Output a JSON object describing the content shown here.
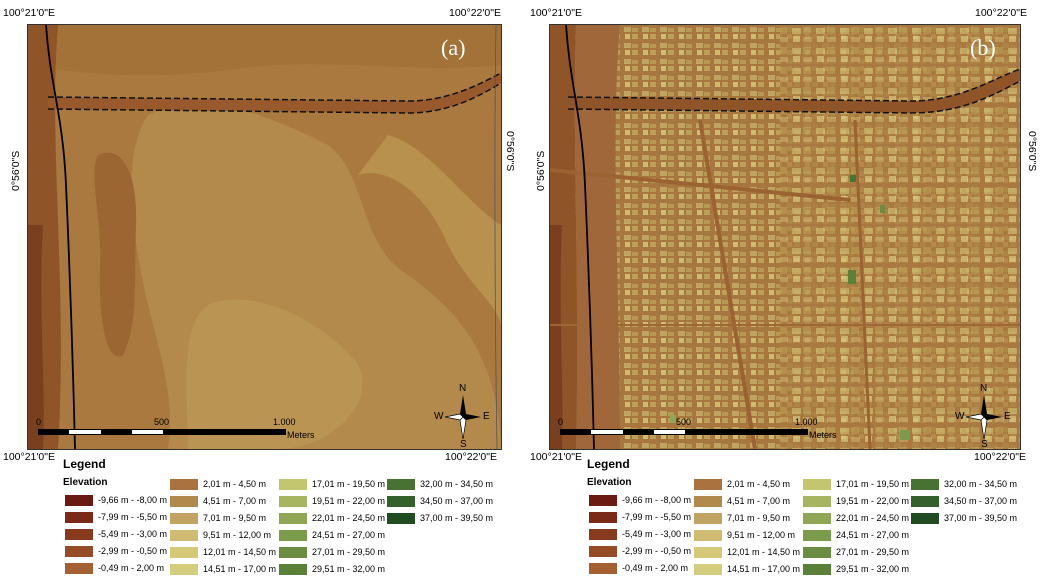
{
  "coords": {
    "top_left": "100°21'0\"E",
    "top_right": "100°22'0\"E",
    "bottom_left": "100°21'0\"E",
    "bottom_right": "100°22'0\"E",
    "left": "0°56'0\"S",
    "right": "0°56'0\"S"
  },
  "panels": [
    {
      "label": "(a)"
    },
    {
      "label": "(b)"
    }
  ],
  "scalebar": {
    "labels": [
      "0",
      "500",
      "1.000"
    ],
    "unit": "Meters"
  },
  "north_arrow": {
    "n": "N",
    "s": "S",
    "e": "E",
    "w": "W",
    "icon": "compass-rose-icon"
  },
  "legend": {
    "title": "Legend",
    "subtitle": "Elevation",
    "items": [
      {
        "label": "-9,66 m - -8,00 m",
        "color": "#6b1a13"
      },
      {
        "label": "-7,99 m - -5,50 m",
        "color": "#7a2a17"
      },
      {
        "label": "-5,49 m - -3,00 m",
        "color": "#883a1e"
      },
      {
        "label": "-2,99 m - -0,50 m",
        "color": "#964c26"
      },
      {
        "label": "-0,49 m - 2,00 m",
        "color": "#a45f32"
      },
      {
        "label": "2,01 m - 4,50 m",
        "color": "#a9723f"
      },
      {
        "label": "4,51 m - 7,00 m",
        "color": "#b0894c"
      },
      {
        "label": "7,01 m - 9,50 m",
        "color": "#c1a463"
      },
      {
        "label": "9,51 m - 12,00 m",
        "color": "#cfbb72"
      },
      {
        "label": "12,01 m - 14,50 m",
        "color": "#d6c879"
      },
      {
        "label": "14,51 m - 17,00 m",
        "color": "#d3ce7d"
      },
      {
        "label": "17,01 m - 19,50 m",
        "color": "#c4c56f"
      },
      {
        "label": "19,51 m - 22,00 m",
        "color": "#a8b560"
      },
      {
        "label": "22,01 m - 24,50 m",
        "color": "#90a656"
      },
      {
        "label": "24,51 m - 27,00 m",
        "color": "#7b9a4c"
      },
      {
        "label": "27,01 m - 29,50 m",
        "color": "#6a8d43"
      },
      {
        "label": "29,51 m - 32,00 m",
        "color": "#5b8139"
      },
      {
        "label": "32,00 m - 34,50 m",
        "color": "#487233"
      },
      {
        "label": "34,50 m - 37,00 m",
        "color": "#33602b"
      },
      {
        "label": "37,00 m - 39,50 m",
        "color": "#214b21"
      }
    ]
  }
}
